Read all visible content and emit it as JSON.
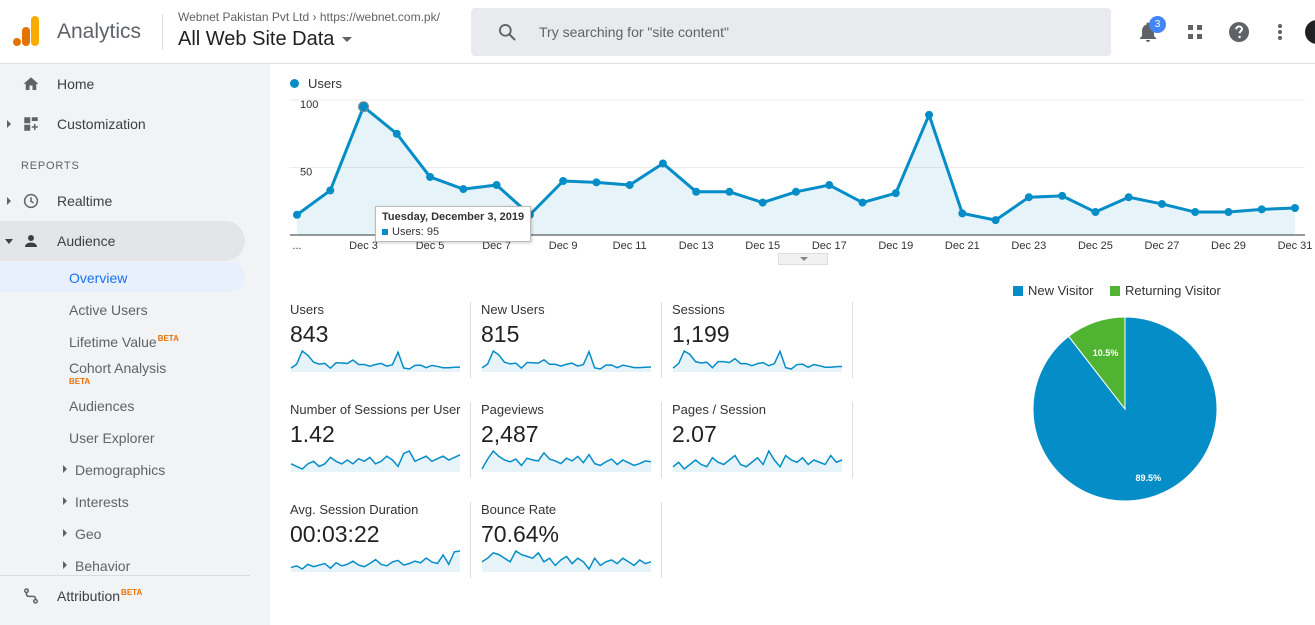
{
  "header": {
    "app_name": "Analytics",
    "account_line": "Webnet Pakistan Pvt Ltd › https://webnet.com.pk/",
    "property_view": "All Web Site Data",
    "search_placeholder": "Try searching for \"site content\"",
    "notification_count": "3"
  },
  "sidebar": {
    "home": "Home",
    "customization": "Customization",
    "reports_heading": "REPORTS",
    "realtime": "Realtime",
    "audience": "Audience",
    "audience_items": [
      {
        "label": "Overview"
      },
      {
        "label": "Active Users"
      },
      {
        "label": "Lifetime Value",
        "beta": "BETA"
      },
      {
        "label": "Cohort Analysis",
        "beta": "BETA"
      },
      {
        "label": "Audiences"
      },
      {
        "label": "User Explorer"
      },
      {
        "label": "Demographics"
      },
      {
        "label": "Interests"
      },
      {
        "label": "Geo"
      },
      {
        "label": "Behavior"
      }
    ],
    "attribution": "Attribution",
    "attribution_beta": "BETA"
  },
  "chart_data": {
    "type": "area",
    "series": [
      {
        "name": "Users",
        "color": "#058dc7",
        "values": [
          15,
          33,
          95,
          75,
          43,
          34,
          37,
          15,
          40,
          39,
          37,
          53,
          32,
          32,
          24,
          32,
          37,
          24,
          31,
          89,
          16,
          11,
          28,
          29,
          17,
          28,
          23,
          17,
          17,
          19,
          20
        ]
      }
    ],
    "x": [
      "Dec 1",
      "Dec 2",
      "Dec 3",
      "Dec 4",
      "Dec 5",
      "Dec 6",
      "Dec 7",
      "Dec 8",
      "Dec 9",
      "Dec 10",
      "Dec 11",
      "Dec 12",
      "Dec 13",
      "Dec 14",
      "Dec 15",
      "Dec 16",
      "Dec 17",
      "Dec 18",
      "Dec 19",
      "Dec 20",
      "Dec 21",
      "Dec 22",
      "Dec 23",
      "Dec 24",
      "Dec 25",
      "Dec 26",
      "Dec 27",
      "Dec 28",
      "Dec 29",
      "Dec 30",
      "Dec 31"
    ],
    "x_tick_labels": [
      "...",
      "Dec 3",
      "Dec 5",
      "Dec 7",
      "Dec 9",
      "Dec 11",
      "Dec 13",
      "Dec 15",
      "Dec 17",
      "Dec 19",
      "Dec 21",
      "Dec 23",
      "Dec 25",
      "Dec 27",
      "Dec 29",
      "Dec 31"
    ],
    "y_ticks": [
      "100",
      "50"
    ],
    "ylim": [
      0,
      100
    ],
    "tooltip": {
      "title": "Tuesday, December 3, 2019",
      "row": "Users: 95"
    }
  },
  "metrics": [
    {
      "label": "Users",
      "value": "843",
      "spark": [
        15,
        33,
        95,
        75,
        43,
        34,
        37,
        15,
        40,
        39,
        37,
        53,
        32,
        32,
        24,
        32,
        37,
        24,
        31,
        89,
        16,
        11,
        28,
        29,
        17,
        28,
        23,
        17,
        17,
        19,
        20
      ]
    },
    {
      "label": "New Users",
      "value": "815",
      "spark": [
        15,
        32,
        90,
        72,
        40,
        33,
        36,
        14,
        39,
        38,
        36,
        51,
        31,
        31,
        23,
        31,
        36,
        23,
        30,
        87,
        15,
        10,
        27,
        28,
        16,
        27,
        22,
        16,
        16,
        18,
        19
      ]
    },
    {
      "label": "Sessions",
      "value": "1,199",
      "spark": [
        22,
        45,
        110,
        92,
        55,
        48,
        52,
        24,
        55,
        55,
        50,
        70,
        45,
        45,
        34,
        45,
        50,
        34,
        45,
        108,
        24,
        17,
        40,
        42,
        26,
        40,
        34,
        26,
        26,
        29,
        30
      ]
    },
    {
      "label": "Number of Sessions per User",
      "value": "1.42",
      "spark": [
        1.4,
        1.38,
        1.36,
        1.4,
        1.42,
        1.38,
        1.4,
        1.45,
        1.42,
        1.4,
        1.43,
        1.4,
        1.44,
        1.42,
        1.45,
        1.4,
        1.42,
        1.46,
        1.43,
        1.38,
        1.48,
        1.5,
        1.42,
        1.44,
        1.46,
        1.42,
        1.44,
        1.46,
        1.43,
        1.45,
        1.47
      ]
    },
    {
      "label": "Pageviews",
      "value": "2,487",
      "spark": [
        40,
        95,
        140,
        110,
        90,
        80,
        95,
        60,
        100,
        90,
        85,
        130,
        95,
        85,
        70,
        100,
        85,
        110,
        75,
        120,
        70,
        60,
        80,
        95,
        65,
        90,
        75,
        60,
        70,
        85,
        80
      ]
    },
    {
      "label": "Pages / Session",
      "value": "2.07",
      "spark": [
        1.9,
        2.1,
        1.8,
        2.0,
        2.2,
        2.0,
        1.9,
        2.3,
        2.1,
        2.0,
        2.2,
        2.4,
        2.0,
        1.9,
        2.1,
        2.3,
        2.0,
        2.6,
        2.2,
        1.9,
        2.4,
        2.2,
        2.1,
        2.3,
        2.0,
        2.2,
        2.1,
        2.0,
        2.4,
        2.1,
        2.2
      ]
    },
    {
      "label": "Avg. Session Duration",
      "value": "00:03:22",
      "spark": [
        120,
        140,
        100,
        160,
        130,
        150,
        170,
        110,
        180,
        140,
        160,
        200,
        150,
        130,
        170,
        220,
        160,
        140,
        190,
        210,
        150,
        170,
        200,
        180,
        240,
        190,
        170,
        280,
        160,
        320,
        330
      ]
    },
    {
      "label": "Bounce Rate",
      "value": "70.64%",
      "spark": [
        70,
        72,
        75,
        74,
        72,
        70,
        76,
        74,
        73,
        72,
        75,
        70,
        72,
        68,
        71,
        73,
        69,
        72,
        70,
        66,
        72,
        68,
        70,
        71,
        69,
        72,
        70,
        68,
        71,
        69,
        70
      ]
    }
  ],
  "pie": {
    "legend": [
      {
        "label": "New Visitor",
        "color": "#058dc7"
      },
      {
        "label": "Returning Visitor",
        "color": "#50b432"
      }
    ],
    "values": [
      89.5,
      10.5
    ],
    "labels": [
      "89.5%",
      "10.5%"
    ]
  }
}
